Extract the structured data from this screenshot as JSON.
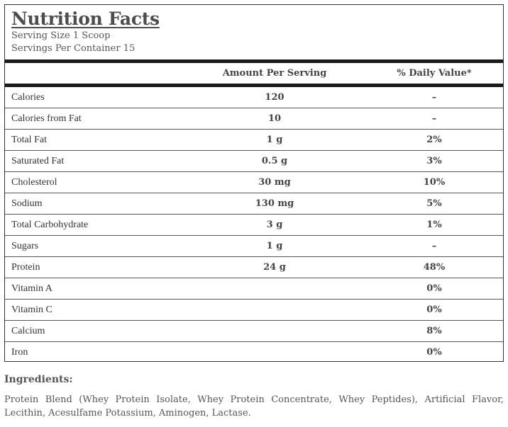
{
  "nutrition": {
    "title": "Nutrition Facts",
    "serving_size": "Serving Size 1 Scoop",
    "servings_per_container": "Servings Per Container 15",
    "col_amount": "Amount Per Serving",
    "col_daily_value": "% Daily Value*",
    "rows": [
      {
        "name": "Calories",
        "amount": "120",
        "dv": "–"
      },
      {
        "name": "Calories from Fat",
        "amount": "10",
        "dv": "–"
      },
      {
        "name": "Total Fat",
        "amount": "1 g",
        "dv": "2%"
      },
      {
        "name": "Saturated Fat",
        "amount": "0.5 g",
        "dv": "3%"
      },
      {
        "name": "Cholesterol",
        "amount": "30 mg",
        "dv": "10%"
      },
      {
        "name": "Sodium",
        "amount": "130 mg",
        "dv": "5%"
      },
      {
        "name": "Total Carbohydrate",
        "amount": "3 g",
        "dv": "1%"
      },
      {
        "name": "Sugars",
        "amount": "1 g",
        "dv": "–"
      },
      {
        "name": "Protein",
        "amount": "24 g",
        "dv": "48%"
      },
      {
        "name": "Vitamin A",
        "amount": "",
        "dv": "0%"
      },
      {
        "name": "Vitamin C",
        "amount": "",
        "dv": "0%"
      },
      {
        "name": "Calcium",
        "amount": "",
        "dv": "8%"
      },
      {
        "name": "Iron",
        "amount": "",
        "dv": "0%"
      }
    ]
  },
  "ingredients": {
    "heading": "Ingredients:",
    "text": "Protein Blend (Whey Protein Isolate, Whey Protein Concentrate, Whey Peptides), Artificial Flavor, Lecithin, Acesulfame Potassium, Aminogen, Lactase."
  }
}
